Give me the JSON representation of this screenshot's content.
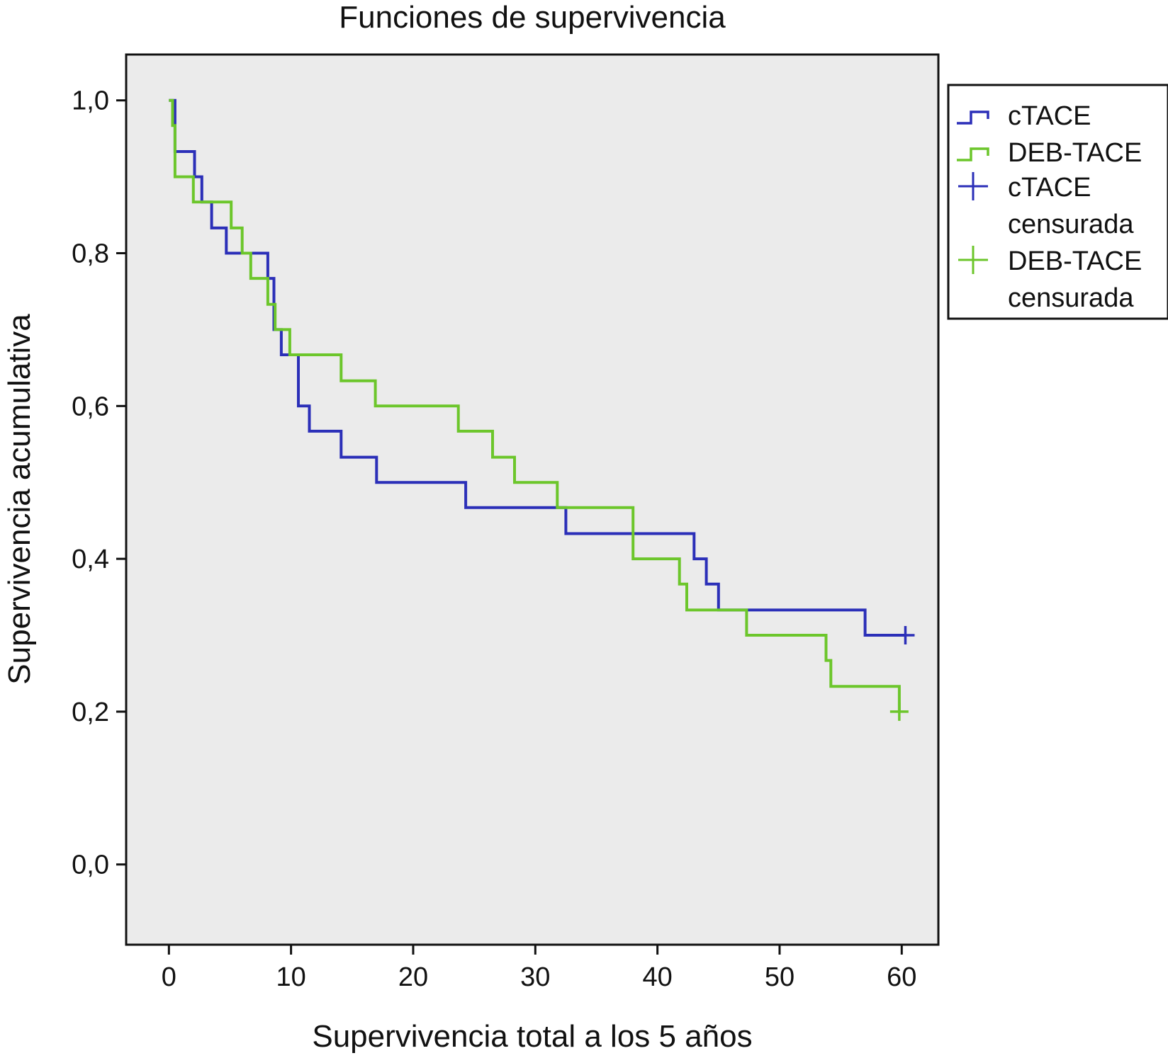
{
  "chart_data": {
    "type": "line",
    "title": "Funciones de supervivencia",
    "xlabel": "Supervivencia total a los 5 años",
    "ylabel": "Supervivencia acumulativa",
    "xlim": [
      -3.5,
      63
    ],
    "ylim": [
      -0.105,
      1.06
    ],
    "xticks": [
      0,
      10,
      20,
      30,
      40,
      50,
      60
    ],
    "xtick_labels": [
      "0",
      "10",
      "20",
      "30",
      "40",
      "50",
      "60"
    ],
    "yticks": [
      0.0,
      0.2,
      0.4,
      0.6,
      0.8,
      1.0
    ],
    "ytick_labels": [
      "0,0",
      "0,2",
      "0,4",
      "0,6",
      "0,8",
      "1,0"
    ],
    "grid": false,
    "plot_background": "#ebebeb",
    "legend_position": "outside-right-top",
    "legend_entries": [
      {
        "label": "cTACE",
        "marker": "step",
        "color": "#2b2fb8"
      },
      {
        "label": "DEB-TACE",
        "marker": "step",
        "color": "#6cc62b"
      },
      {
        "label": "cTACE",
        "label2": "censurada",
        "marker": "cross",
        "color": "#2b2fb8"
      },
      {
        "label": "DEB-TACE",
        "label2": "censurada",
        "marker": "cross",
        "color": "#6cc62b"
      }
    ],
    "series": [
      {
        "name": "cTACE",
        "color": "#2b2fb8",
        "step": true,
        "x": [
          0,
          0.5,
          2.1,
          2.7,
          3.5,
          4.7,
          8.1,
          8.6,
          9.2,
          10.6,
          11.5,
          14.1,
          17.0,
          24.3,
          32.5,
          43.0,
          44.0,
          45.0,
          57.0,
          60.3
        ],
        "y": [
          1.0,
          0.933,
          0.9,
          0.867,
          0.833,
          0.8,
          0.767,
          0.7,
          0.667,
          0.6,
          0.567,
          0.533,
          0.5,
          0.467,
          0.433,
          0.4,
          0.367,
          0.333,
          0.3,
          0.3
        ],
        "censored": [
          {
            "x": 60.3,
            "y": 0.3
          }
        ]
      },
      {
        "name": "DEB-TACE",
        "color": "#6cc62b",
        "step": true,
        "x": [
          0,
          0.3,
          0.5,
          2.0,
          5.1,
          6.0,
          6.7,
          8.1,
          8.7,
          9.9,
          14.1,
          16.9,
          23.7,
          26.5,
          28.3,
          31.8,
          38.0,
          41.8,
          42.4,
          47.3,
          53.8,
          54.2,
          59.8
        ],
        "y": [
          1.0,
          0.967,
          0.9,
          0.867,
          0.833,
          0.8,
          0.767,
          0.733,
          0.7,
          0.667,
          0.633,
          0.6,
          0.567,
          0.533,
          0.5,
          0.467,
          0.4,
          0.367,
          0.333,
          0.3,
          0.267,
          0.233,
          0.2
        ],
        "censored": [
          {
            "x": 59.8,
            "y": 0.2
          }
        ]
      }
    ]
  }
}
